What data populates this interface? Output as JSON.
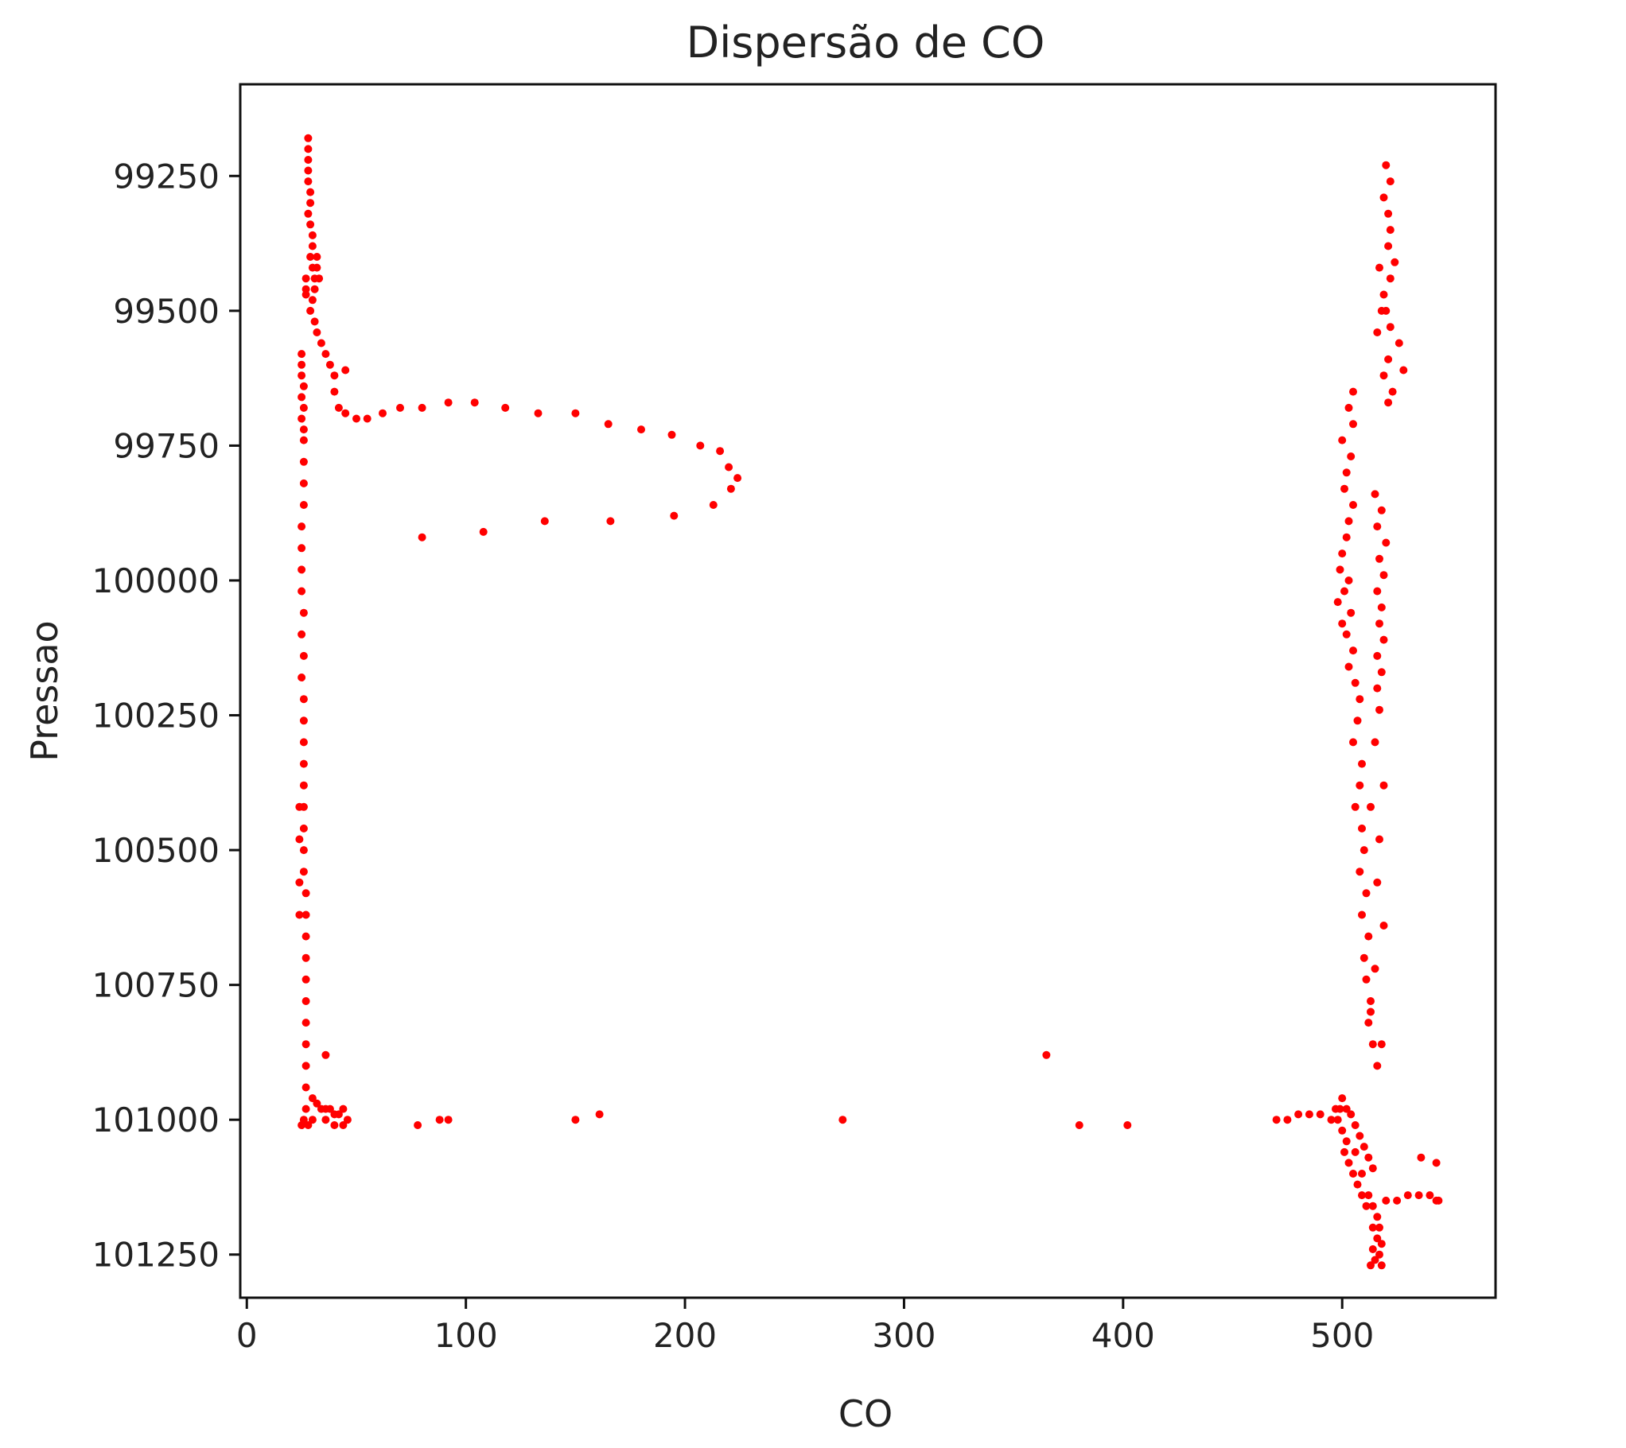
{
  "chart_data": {
    "type": "scatter",
    "title": "Dispersão de CO",
    "xlabel": "CO",
    "ylabel": "Pressao",
    "xlim": [
      -3,
      570
    ],
    "ylim": [
      101330,
      99080
    ],
    "y_inverted": true,
    "grid": false,
    "legend": "none",
    "marker_color": "#ff0000",
    "x_ticks": [
      "0",
      "100",
      "200",
      "300",
      "400",
      "500"
    ],
    "x_tick_values": [
      0,
      100,
      200,
      300,
      400,
      500
    ],
    "y_ticks": [
      "99250",
      "99500",
      "99750",
      "100000",
      "100250",
      "100500",
      "100750",
      "101000",
      "101250"
    ],
    "y_tick_values": [
      99250,
      99500,
      99750,
      100000,
      100250,
      100500,
      100750,
      101000,
      101250
    ],
    "series": [
      {
        "points": [
          [
            28,
            99180
          ],
          [
            28,
            99200
          ],
          [
            28,
            99220
          ],
          [
            28,
            99240
          ],
          [
            28,
            99260
          ],
          [
            29,
            99280
          ],
          [
            29,
            99300
          ],
          [
            28,
            99320
          ],
          [
            29,
            99340
          ],
          [
            30,
            99360
          ],
          [
            30,
            99380
          ],
          [
            29,
            99400
          ],
          [
            30,
            99420
          ],
          [
            31,
            99440
          ],
          [
            31,
            99460
          ],
          [
            30,
            99480
          ],
          [
            29,
            99500
          ],
          [
            31,
            99520
          ],
          [
            32,
            99540
          ],
          [
            34,
            99560
          ],
          [
            36,
            99580
          ],
          [
            38,
            99600
          ],
          [
            40,
            99620
          ],
          [
            45,
            99610
          ],
          [
            32,
            99400
          ],
          [
            32,
            99420
          ],
          [
            33,
            99440
          ],
          [
            27,
            99440
          ],
          [
            27,
            99460
          ],
          [
            27,
            99470
          ],
          [
            25,
            99580
          ],
          [
            25,
            99600
          ],
          [
            25,
            99620
          ],
          [
            26,
            99640
          ],
          [
            25,
            99660
          ],
          [
            26,
            99680
          ],
          [
            25,
            99700
          ],
          [
            26,
            99720
          ],
          [
            26,
            99740
          ],
          [
            40,
            99650
          ],
          [
            42,
            99680
          ],
          [
            45,
            99690
          ],
          [
            50,
            99700
          ],
          [
            55,
            99700
          ],
          [
            62,
            99690
          ],
          [
            70,
            99680
          ],
          [
            80,
            99680
          ],
          [
            92,
            99670
          ],
          [
            104,
            99670
          ],
          [
            118,
            99680
          ],
          [
            133,
            99690
          ],
          [
            150,
            99690
          ],
          [
            165,
            99710
          ],
          [
            180,
            99720
          ],
          [
            194,
            99730
          ],
          [
            207,
            99750
          ],
          [
            216,
            99760
          ],
          [
            220,
            99790
          ],
          [
            224,
            99810
          ],
          [
            221,
            99830
          ],
          [
            213,
            99860
          ],
          [
            195,
            99880
          ],
          [
            166,
            99890
          ],
          [
            136,
            99890
          ],
          [
            108,
            99910
          ],
          [
            80,
            99920
          ],
          [
            26,
            99780
          ],
          [
            26,
            99820
          ],
          [
            26,
            99860
          ],
          [
            25,
            99900
          ],
          [
            25,
            99940
          ],
          [
            25,
            99980
          ],
          [
            25,
            100020
          ],
          [
            26,
            100060
          ],
          [
            25,
            100100
          ],
          [
            26,
            100140
          ],
          [
            25,
            100180
          ],
          [
            26,
            100220
          ],
          [
            26,
            100260
          ],
          [
            26,
            100300
          ],
          [
            26,
            100340
          ],
          [
            26,
            100380
          ],
          [
            26,
            100420
          ],
          [
            26,
            100460
          ],
          [
            26,
            100500
          ],
          [
            26,
            100540
          ],
          [
            27,
            100580
          ],
          [
            27,
            100620
          ],
          [
            27,
            100660
          ],
          [
            27,
            100700
          ],
          [
            27,
            100740
          ],
          [
            27,
            100780
          ],
          [
            27,
            100820
          ],
          [
            27,
            100860
          ],
          [
            27,
            100900
          ],
          [
            27,
            100940
          ],
          [
            27,
            100980
          ],
          [
            26,
            101000
          ],
          [
            28,
            101010
          ],
          [
            24,
            100420
          ],
          [
            24,
            100480
          ],
          [
            24,
            100560
          ],
          [
            24,
            100620
          ],
          [
            36,
            100880
          ],
          [
            30,
            100960
          ],
          [
            32,
            100970
          ],
          [
            34,
            100980
          ],
          [
            36,
            100980
          ],
          [
            38,
            100980
          ],
          [
            40,
            100990
          ],
          [
            42,
            100990
          ],
          [
            44,
            100980
          ],
          [
            46,
            101000
          ],
          [
            44,
            101010
          ],
          [
            40,
            101010
          ],
          [
            36,
            101000
          ],
          [
            30,
            101000
          ],
          [
            25,
            101010
          ],
          [
            78,
            101010
          ],
          [
            88,
            101000
          ],
          [
            92,
            101000
          ],
          [
            150,
            101000
          ],
          [
            161,
            100990
          ],
          [
            272,
            101000
          ],
          [
            365,
            100880
          ],
          [
            380,
            101010
          ],
          [
            402,
            101010
          ],
          [
            470,
            101000
          ],
          [
            475,
            101000
          ],
          [
            480,
            100990
          ],
          [
            485,
            100990
          ],
          [
            490,
            100990
          ],
          [
            495,
            101000
          ],
          [
            497,
            100980
          ],
          [
            499,
            100980
          ],
          [
            520,
            99230
          ],
          [
            522,
            99260
          ],
          [
            519,
            99290
          ],
          [
            521,
            99320
          ],
          [
            522,
            99350
          ],
          [
            521,
            99380
          ],
          [
            524,
            99410
          ],
          [
            522,
            99440
          ],
          [
            519,
            99470
          ],
          [
            520,
            99500
          ],
          [
            522,
            99530
          ],
          [
            526,
            99560
          ],
          [
            521,
            99590
          ],
          [
            528,
            99610
          ],
          [
            519,
            99620
          ],
          [
            523,
            99650
          ],
          [
            521,
            99670
          ],
          [
            517,
            99420
          ],
          [
            518,
            99500
          ],
          [
            516,
            99540
          ],
          [
            505,
            99650
          ],
          [
            503,
            99680
          ],
          [
            505,
            99710
          ],
          [
            500,
            99740
          ],
          [
            504,
            99770
          ],
          [
            502,
            99800
          ],
          [
            501,
            99830
          ],
          [
            505,
            99860
          ],
          [
            503,
            99890
          ],
          [
            502,
            99920
          ],
          [
            500,
            99950
          ],
          [
            499,
            99980
          ],
          [
            503,
            100000
          ],
          [
            501,
            100020
          ],
          [
            498,
            100040
          ],
          [
            504,
            100060
          ],
          [
            500,
            100080
          ],
          [
            502,
            100100
          ],
          [
            505,
            100130
          ],
          [
            503,
            100160
          ],
          [
            506,
            100190
          ],
          [
            508,
            100220
          ],
          [
            507,
            100260
          ],
          [
            505,
            100300
          ],
          [
            509,
            100340
          ],
          [
            508,
            100380
          ],
          [
            506,
            100420
          ],
          [
            509,
            100460
          ],
          [
            510,
            100500
          ],
          [
            508,
            100540
          ],
          [
            511,
            100580
          ],
          [
            509,
            100620
          ],
          [
            512,
            100660
          ],
          [
            510,
            100700
          ],
          [
            511,
            100740
          ],
          [
            513,
            100780
          ],
          [
            512,
            100820
          ],
          [
            514,
            100860
          ],
          [
            516,
            100900
          ],
          [
            515,
            99840
          ],
          [
            518,
            99870
          ],
          [
            516,
            99900
          ],
          [
            520,
            99930
          ],
          [
            517,
            99960
          ],
          [
            519,
            99990
          ],
          [
            516,
            100020
          ],
          [
            518,
            100050
          ],
          [
            517,
            100080
          ],
          [
            519,
            100110
          ],
          [
            516,
            100140
          ],
          [
            518,
            100170
          ],
          [
            516,
            100200
          ],
          [
            517,
            100240
          ],
          [
            515,
            100300
          ],
          [
            519,
            100380
          ],
          [
            513,
            100420
          ],
          [
            517,
            100480
          ],
          [
            516,
            100560
          ],
          [
            519,
            100640
          ],
          [
            515,
            100720
          ],
          [
            513,
            100800
          ],
          [
            518,
            100860
          ],
          [
            500,
            100960
          ],
          [
            502,
            100980
          ],
          [
            498,
            101000
          ],
          [
            500,
            101020
          ],
          [
            502,
            101040
          ],
          [
            501,
            101060
          ],
          [
            503,
            101080
          ],
          [
            505,
            101100
          ],
          [
            507,
            101120
          ],
          [
            509,
            101140
          ],
          [
            511,
            101160
          ],
          [
            504,
            100990
          ],
          [
            506,
            101010
          ],
          [
            508,
            101030
          ],
          [
            510,
            101050
          ],
          [
            512,
            101070
          ],
          [
            514,
            101090
          ],
          [
            506,
            101060
          ],
          [
            509,
            101100
          ],
          [
            512,
            101140
          ],
          [
            514,
            101160
          ],
          [
            516,
            101180
          ],
          [
            514,
            101200
          ],
          [
            516,
            101220
          ],
          [
            514,
            101240
          ],
          [
            515,
            101260
          ],
          [
            513,
            101270
          ],
          [
            517,
            101250
          ],
          [
            518,
            101230
          ],
          [
            517,
            101200
          ],
          [
            518,
            101270
          ],
          [
            520,
            101150
          ],
          [
            525,
            101150
          ],
          [
            530,
            101140
          ],
          [
            535,
            101140
          ],
          [
            540,
            101140
          ],
          [
            543,
            101150
          ],
          [
            544,
            101150
          ],
          [
            536,
            101070
          ],
          [
            543,
            101080
          ]
        ]
      }
    ]
  }
}
